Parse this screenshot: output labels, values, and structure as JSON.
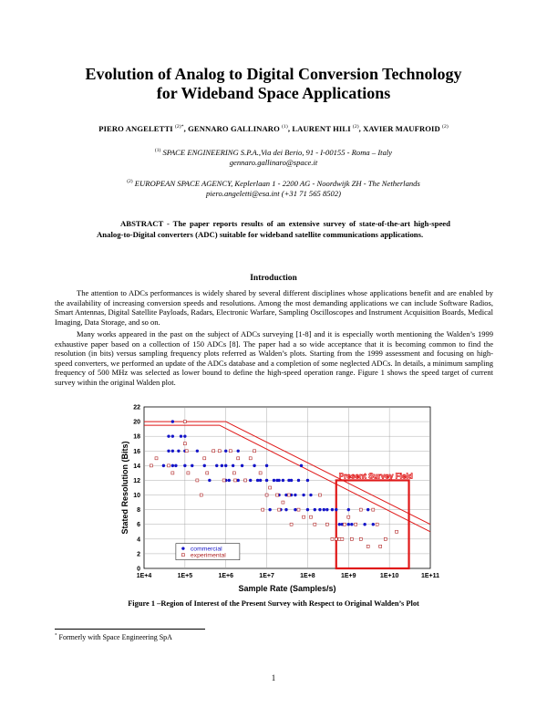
{
  "paper": {
    "title_line1": "Evolution of Analog to Digital Conversion Technology",
    "title_line2": "for Wideband Space Applications",
    "authors": [
      {
        "name": "PIERO ANGELETTI",
        "sup": "(2)*"
      },
      {
        "name": "GENNARO GALLINARO",
        "sup": "(1)"
      },
      {
        "name": "LAURENT HILI",
        "sup": "(2)"
      },
      {
        "name": "XAVIER MAUFROID",
        "sup": "(2)"
      }
    ],
    "affiliation1": {
      "sup": "(1)",
      "line1": "SPACE ENGINEERING S.P.A.,Via dei Berio, 91 - I-00155 - Roma – Italy",
      "line2": "gennaro.gallinaro@space.it"
    },
    "affiliation2": {
      "sup": "(2)",
      "line1": "EUROPEAN SPACE AGENCY, Keplerlaan 1 - 2200 AG - Noordwijk ZH - The Netherlands",
      "line2": "piero.angeletti@esa.int (+31 71 565 8502)"
    },
    "abstract": "ABSTRACT - The paper reports results of an extensive survey of state-of-the-art high-speed Analog-to-Digital converters (ADC) suitable for wideband satellite communications applications.",
    "section_heading": "Introduction",
    "paragraph1": "The attention to ADCs performances is widely shared by several different disciplines whose applications benefit and are enabled by the availability of increasing conversion speeds and resolutions. Among the most demanding applications we can include Software Radios, Smart Antennas, Digital Satellite Payloads, Radars, Electronic Warfare, Sampling Oscilloscopes and Instrument Acquisition Boards, Medical Imaging, Data Storage, and so on.",
    "paragraph2": "Many works appeared in the past on the subject of ADCs surveying [1-8] and it is especially worth mentioning the Walden’s 1999 exhaustive paper based on a collection of 150 ADCs [8]. The paper had a so wide acceptance that it is becoming common to find the resolution (in bits) versus sampling frequency plots referred as Walden’s plots. Starting from the 1999 assessment and focusing on high-speed converters, we performed an update of the ADCs database and a completion of some neglected ADCs. In details, a minimum sampling frequency of 500 MHz was selected as lower bound to define the high-speed operation range. Figure 1 shows the speed target of current survey within the original Walden plot.",
    "figure_caption": "Figure 1 –Region of Interest of the Present Survey with Respect to Original Walden’s Plot",
    "footnote_mark": "*",
    "footnote": "Formerly with Space Engineering SpA",
    "page_number": "1"
  },
  "chart_data": {
    "type": "scatter",
    "xlabel": "Sample Rate (Samples/s)",
    "ylabel": "Stated Resolution (Bits)",
    "x_scale": "log",
    "xlim": [
      10000,
      100000000000
    ],
    "ylim": [
      0,
      22
    ],
    "x_tick_labels": [
      "1E+4",
      "1E+5",
      "1E+6",
      "1E+7",
      "1E+8",
      "1E+9",
      "1E+10",
      "1E+11"
    ],
    "y_tick_labels": [
      "0",
      "2",
      "4",
      "6",
      "8",
      "10",
      "12",
      "14",
      "16",
      "18",
      "20",
      "22"
    ],
    "grid": true,
    "legend_position": "bottom-left",
    "annotation": "Present Survey Field",
    "colors": {
      "commercial": "#1515c8",
      "experimental": "#b02424",
      "boundary": "#e01818"
    },
    "series": [
      {
        "name": "commercial",
        "marker": "filled-circle",
        "points": [
          [
            30000,
            14
          ],
          [
            40000,
            18
          ],
          [
            40000,
            16
          ],
          [
            50000,
            20
          ],
          [
            50000,
            18
          ],
          [
            50000,
            16
          ],
          [
            50000,
            14
          ],
          [
            60000,
            14
          ],
          [
            70000,
            16
          ],
          [
            80000,
            18
          ],
          [
            100000,
            16
          ],
          [
            100000,
            14
          ],
          [
            100000,
            18
          ],
          [
            150000,
            14
          ],
          [
            200000,
            16
          ],
          [
            300000,
            14
          ],
          [
            400000,
            12
          ],
          [
            500000,
            16
          ],
          [
            600000,
            14
          ],
          [
            800000,
            14
          ],
          [
            1000000,
            12
          ],
          [
            1000000,
            14
          ],
          [
            1000000,
            16
          ],
          [
            1200000,
            12
          ],
          [
            1500000,
            14
          ],
          [
            2000000,
            12
          ],
          [
            2000000,
            16
          ],
          [
            2500000,
            14
          ],
          [
            3000000,
            12
          ],
          [
            4000000,
            12
          ],
          [
            5000000,
            14
          ],
          [
            6000000,
            12
          ],
          [
            7000000,
            12
          ],
          [
            10000000,
            12
          ],
          [
            10000000,
            10
          ],
          [
            10000000,
            14
          ],
          [
            12000000,
            8
          ],
          [
            15000000,
            12
          ],
          [
            18000000,
            12
          ],
          [
            20000000,
            10
          ],
          [
            20000000,
            12
          ],
          [
            22000000,
            8
          ],
          [
            25000000,
            12
          ],
          [
            30000000,
            10
          ],
          [
            30000000,
            8
          ],
          [
            35000000,
            12
          ],
          [
            40000000,
            10
          ],
          [
            40000000,
            12
          ],
          [
            50000000,
            10
          ],
          [
            50000000,
            8
          ],
          [
            60000000,
            12
          ],
          [
            70000000,
            14
          ],
          [
            80000000,
            10
          ],
          [
            100000000,
            8
          ],
          [
            100000000,
            12
          ],
          [
            120000000,
            10
          ],
          [
            150000000,
            8
          ],
          [
            200000000,
            8
          ],
          [
            250000000,
            8
          ],
          [
            300000000,
            8
          ],
          [
            400000000,
            8
          ],
          [
            500000000,
            8
          ],
          [
            600000000,
            6
          ],
          [
            700000000,
            6
          ],
          [
            1000000000,
            6
          ],
          [
            1000000000,
            8
          ],
          [
            1200000000,
            6
          ],
          [
            1500000000,
            6
          ],
          [
            2000000000,
            8
          ],
          [
            2500000000,
            6
          ],
          [
            3000000000,
            8
          ],
          [
            4000000000,
            6
          ]
        ]
      },
      {
        "name": "experimental",
        "marker": "open-square",
        "points": [
          [
            15000,
            14
          ],
          [
            20000,
            15
          ],
          [
            40000,
            14
          ],
          [
            50000,
            13
          ],
          [
            100000,
            20
          ],
          [
            100000,
            17
          ],
          [
            110000,
            16
          ],
          [
            120000,
            13
          ],
          [
            200000,
            12
          ],
          [
            250000,
            10
          ],
          [
            300000,
            15
          ],
          [
            350000,
            13
          ],
          [
            500000,
            16
          ],
          [
            700000,
            16
          ],
          [
            900000,
            12
          ],
          [
            1300000,
            16
          ],
          [
            1600000,
            13
          ],
          [
            1700000,
            12
          ],
          [
            2000000,
            15
          ],
          [
            3000000,
            12
          ],
          [
            4000000,
            15
          ],
          [
            5000000,
            16
          ],
          [
            7000000,
            13
          ],
          [
            8000000,
            8
          ],
          [
            10000000,
            10
          ],
          [
            12000000,
            11
          ],
          [
            18000000,
            10
          ],
          [
            20000000,
            8
          ],
          [
            25000000,
            9
          ],
          [
            35000000,
            10
          ],
          [
            40000000,
            6
          ],
          [
            60000000,
            8
          ],
          [
            80000000,
            7
          ],
          [
            120000000,
            7
          ],
          [
            150000000,
            6
          ],
          [
            200000000,
            10
          ],
          [
            300000000,
            6
          ],
          [
            400000000,
            4
          ],
          [
            500000000,
            4
          ],
          [
            600000000,
            4
          ],
          [
            700000000,
            4
          ],
          [
            800000000,
            6
          ],
          [
            1000000000,
            7
          ],
          [
            1200000000,
            4
          ],
          [
            1500000000,
            6
          ],
          [
            2000000000,
            8
          ],
          [
            2000000000,
            4
          ],
          [
            3000000000,
            3
          ],
          [
            4000000000,
            8
          ],
          [
            5000000000,
            6
          ],
          [
            6000000000,
            3
          ],
          [
            8000000000,
            4
          ],
          [
            15000000000,
            5
          ]
        ]
      }
    ],
    "lines": [
      {
        "name": "walden-outer",
        "points": [
          [
            10000,
            20
          ],
          [
            1000000,
            20
          ],
          [
            100000000000,
            6
          ]
        ]
      },
      {
        "name": "walden-inner",
        "points": [
          [
            10000,
            19.5
          ],
          [
            700000,
            19.5
          ],
          [
            100000000000,
            5
          ]
        ]
      }
    ],
    "highlight_region": {
      "x": [
        500000000,
        30000000000
      ],
      "y": [
        0,
        12
      ]
    }
  }
}
